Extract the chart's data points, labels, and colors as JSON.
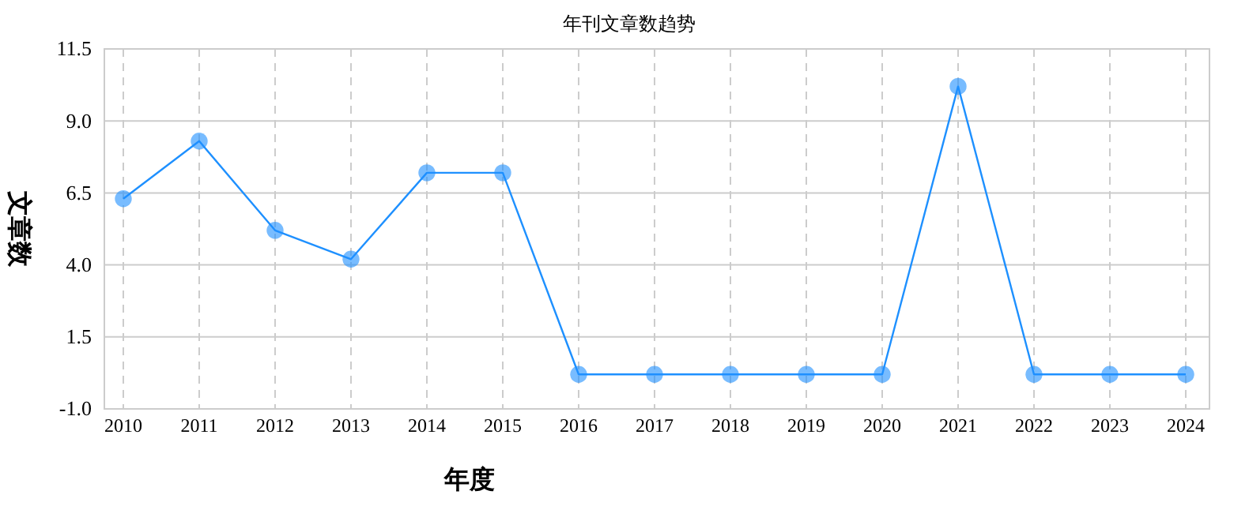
{
  "chart_data": {
    "type": "line",
    "title": "年刊文章数趋势",
    "xlabel": "年度",
    "ylabel": "文章数",
    "categories": [
      "2010",
      "2011",
      "2012",
      "2013",
      "2014",
      "2015",
      "2016",
      "2017",
      "2018",
      "2019",
      "2020",
      "2021",
      "2022",
      "2023",
      "2024"
    ],
    "series": [
      {
        "color": "#1e90ff",
        "values": [
          6.3,
          8.3,
          5.2,
          4.2,
          7.2,
          7.2,
          0.2,
          0.2,
          0.2,
          0.2,
          0.2,
          10.2,
          0.2,
          0.2,
          0.2
        ]
      }
    ],
    "ylim": [
      -1.0,
      11.5
    ],
    "yticks": [
      {
        "value": -1,
        "label": "-1.0"
      },
      {
        "value": 1.5,
        "label": "1.5"
      },
      {
        "value": 4,
        "label": "4.0"
      },
      {
        "value": 6.5,
        "label": "6.5"
      },
      {
        "value": 9,
        "label": "9.0"
      },
      {
        "value": 11.5,
        "label": "11.5"
      }
    ],
    "grid": true,
    "marker": "circle",
    "line_style": "solid"
  }
}
